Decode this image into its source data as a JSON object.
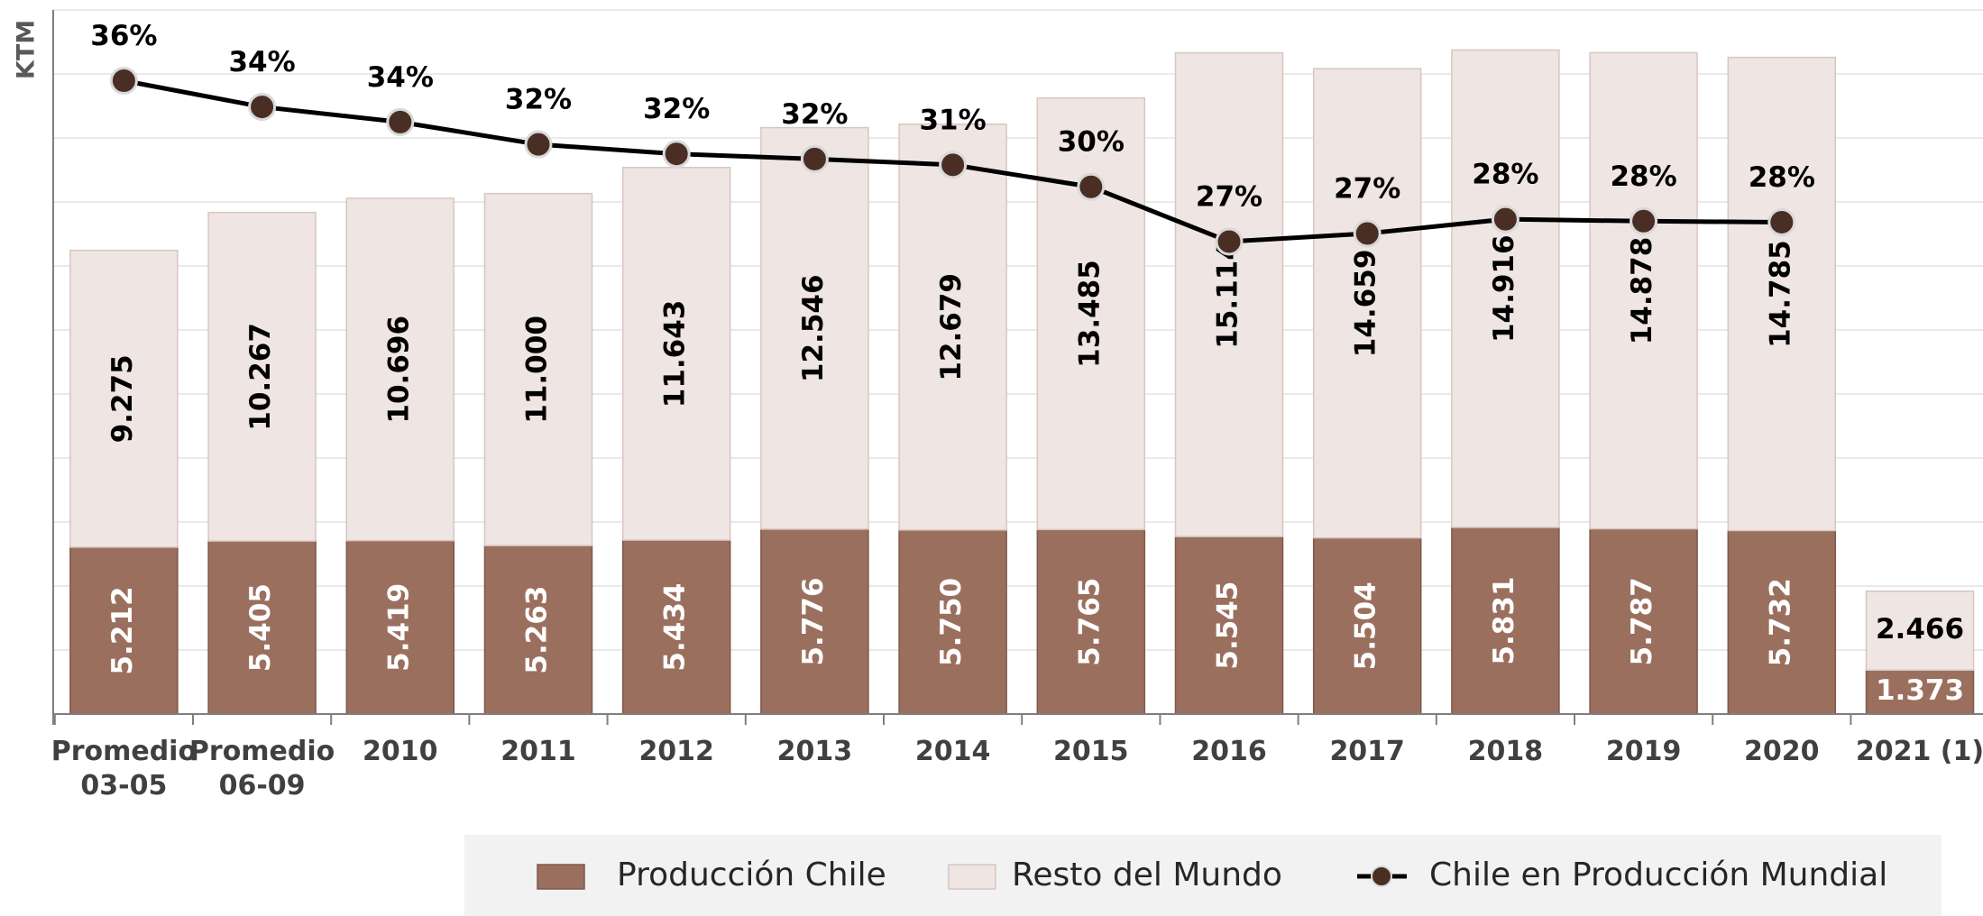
{
  "chart_data": {
    "type": "bar",
    "stacked": true,
    "y_label": "KTM",
    "categories": [
      "Promedio 03-05",
      "Promedio 06-09",
      "2010",
      "2011",
      "2012",
      "2013",
      "2014",
      "2015",
      "2016",
      "2017",
      "2018",
      "2019",
      "2020",
      "2021 (1)"
    ],
    "series": [
      {
        "name": "Producción Chile",
        "color": "#9b6f5e",
        "values": [
          5212,
          5405,
          5419,
          5263,
          5434,
          5776,
          5750,
          5765,
          5545,
          5504,
          5831,
          5787,
          5732,
          1373
        ],
        "value_labels": [
          "5.212",
          "5.405",
          "5.419",
          "5.263",
          "5.434",
          "5.776",
          "5.750",
          "5.765",
          "5.545",
          "5.504",
          "5.831",
          "5.787",
          "5.732",
          "1.373"
        ]
      },
      {
        "name": "Resto del Mundo",
        "color": "#efe5e3",
        "values": [
          9275,
          10267,
          10696,
          11000,
          11643,
          12546,
          12679,
          13485,
          15114,
          14659,
          14916,
          14878,
          14785,
          2466
        ],
        "value_labels": [
          "9.275",
          "10.267",
          "10.696",
          "11.000",
          "11.643",
          "12.546",
          "12.679",
          "13.485",
          "15.114",
          "14.659",
          "14.916",
          "14.878",
          "14.785",
          "2.466"
        ]
      },
      {
        "name": "Chile en Producción Mundial",
        "type": "line",
        "axis": "y2",
        "color": "#000000",
        "marker_color": "#4a2e24",
        "values": [
          35.98,
          34.49,
          33.63,
          32.36,
          31.82,
          31.53,
          31.2,
          29.95,
          26.84,
          27.3,
          28.11,
          28.0,
          27.94,
          null
        ],
        "value_labels": [
          "36%",
          "34%",
          "34%",
          "32%",
          "32%",
          "32%",
          "31%",
          "30%",
          "27%",
          "27%",
          "28%",
          "28%",
          "28%",
          null
        ]
      }
    ],
    "ylim": [
      0,
      22000
    ],
    "yticks": [
      0,
      2000,
      4000,
      6000,
      8000,
      10000,
      12000,
      14000,
      16000,
      18000,
      20000,
      22000
    ],
    "y2lim": [
      0,
      40
    ],
    "grid": true,
    "legend": "bottom"
  }
}
